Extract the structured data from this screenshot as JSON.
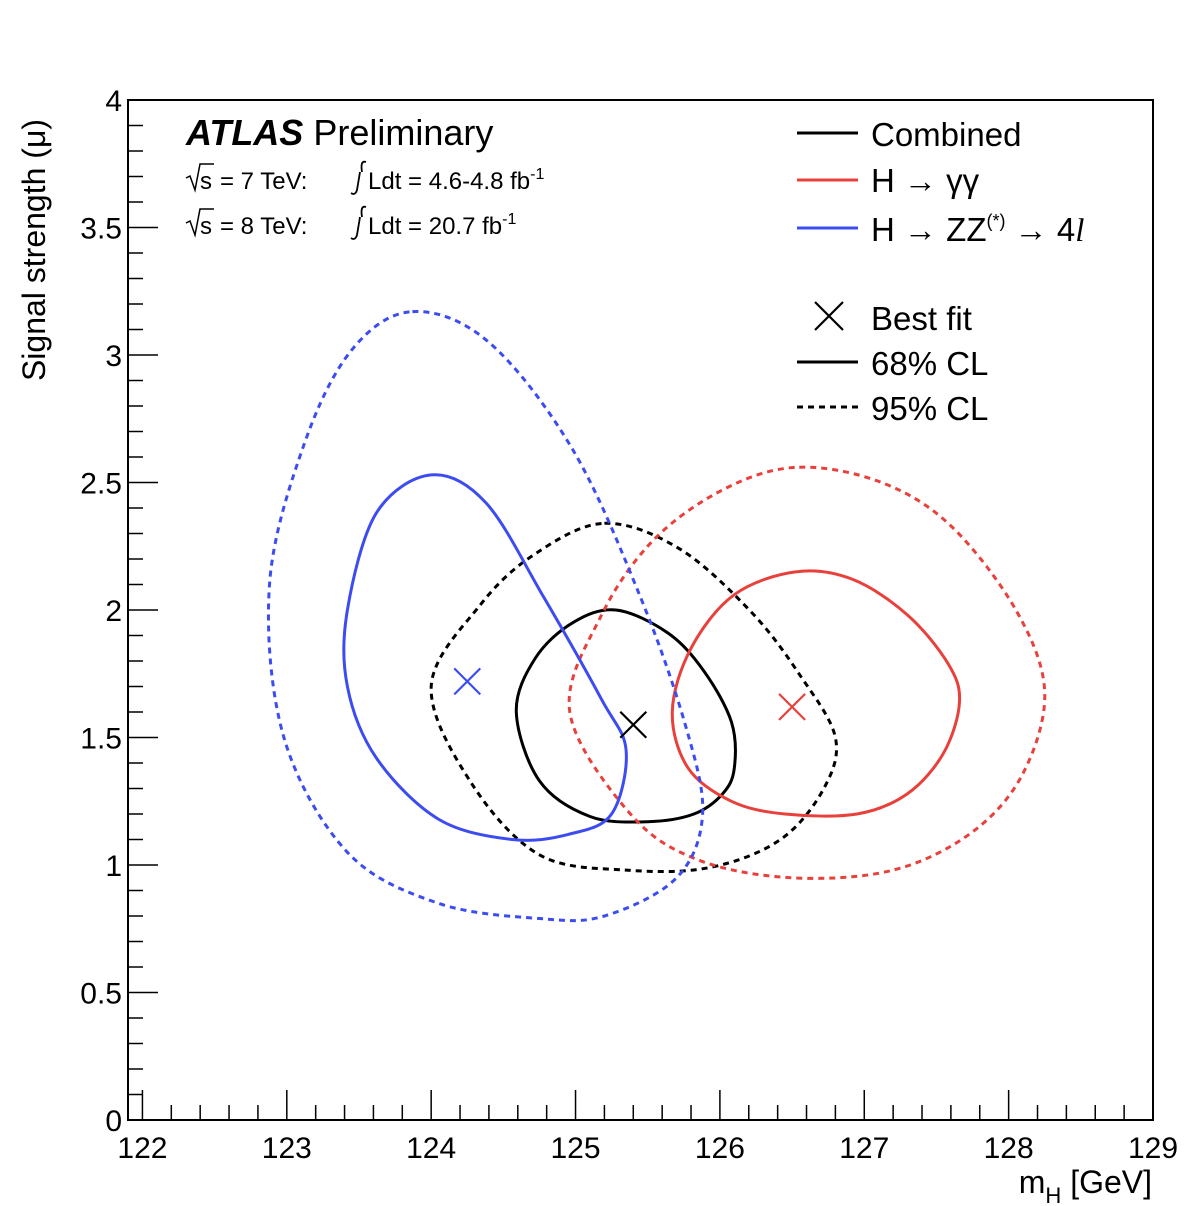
{
  "experiment": {
    "brand": "ATLAS",
    "status": "Preliminary"
  },
  "lumi_lines": [
    {
      "sqrt_label": "s",
      "energy": "= 7 TeV:",
      "integral": "Ldt = 4.6-4.8 fb",
      "exponent": "-1"
    },
    {
      "sqrt_label": "s",
      "energy": "= 8 TeV:",
      "integral": "Ldt = 20.7 fb",
      "exponent": "-1"
    }
  ],
  "legend": {
    "combined": "Combined",
    "gammagamma": "H → γγ",
    "zz": {
      "main": "H → ZZ",
      "sup": "(*)",
      "tail": " → 4",
      "ital": "l"
    },
    "best_fit": "Best fit",
    "cl68": "68% CL",
    "cl95": "95% CL"
  },
  "colors": {
    "combined": "#000000",
    "gammagamma": "#e8413c",
    "zz": "#3d4cf0"
  },
  "chart_data": {
    "type": "scatter",
    "xlabel": {
      "main": "m",
      "sub": "H",
      "unit": " [GeV]"
    },
    "ylabel": "Signal strength (μ)",
    "xlim": [
      121.9,
      129
    ],
    "ylim": [
      0,
      4
    ],
    "x_ticks": [
      122,
      123,
      124,
      125,
      126,
      127,
      128,
      129
    ],
    "y_ticks": [
      0,
      0.5,
      1,
      1.5,
      2,
      2.5,
      3,
      3.5,
      4
    ],
    "y_tick_labels": [
      "0",
      "0.5",
      "1",
      "1.5",
      "2",
      "2.5",
      "3",
      "3.5",
      "4"
    ],
    "grid": false,
    "legend_position": "top-right",
    "series": [
      {
        "name": "Combined",
        "color_key": "combined",
        "best_fit": [
          125.4,
          1.55
        ],
        "cl68": [
          [
            125.28,
            2.0
          ],
          [
            125.64,
            1.91
          ],
          [
            125.89,
            1.76
          ],
          [
            126.08,
            1.56
          ],
          [
            126.1,
            1.38
          ],
          [
            126.02,
            1.28
          ],
          [
            125.82,
            1.2
          ],
          [
            125.5,
            1.17
          ],
          [
            125.1,
            1.19
          ],
          [
            124.75,
            1.33
          ],
          [
            124.59,
            1.6
          ],
          [
            124.72,
            1.81
          ],
          [
            124.98,
            1.95
          ]
        ],
        "cl95": [
          [
            125.2,
            2.34
          ],
          [
            125.72,
            2.24
          ],
          [
            126.22,
            1.99
          ],
          [
            126.56,
            1.74
          ],
          [
            126.8,
            1.5
          ],
          [
            126.72,
            1.3
          ],
          [
            126.42,
            1.1
          ],
          [
            125.93,
            0.99
          ],
          [
            125.35,
            0.98
          ],
          [
            124.75,
            1.04
          ],
          [
            124.28,
            1.32
          ],
          [
            124.0,
            1.7
          ],
          [
            124.34,
            2.02
          ],
          [
            124.72,
            2.22
          ]
        ]
      },
      {
        "name": "H → γγ",
        "color_key": "gammagamma",
        "best_fit": [
          126.5,
          1.62
        ],
        "cl68": [
          [
            126.53,
            2.15
          ],
          [
            126.92,
            2.12
          ],
          [
            127.3,
            1.98
          ],
          [
            127.58,
            1.79
          ],
          [
            127.66,
            1.64
          ],
          [
            127.55,
            1.44
          ],
          [
            127.3,
            1.28
          ],
          [
            126.95,
            1.2
          ],
          [
            126.45,
            1.2
          ],
          [
            126.08,
            1.25
          ],
          [
            125.78,
            1.38
          ],
          [
            125.67,
            1.6
          ],
          [
            125.8,
            1.85
          ],
          [
            126.1,
            2.06
          ]
        ],
        "cl95": [
          [
            126.55,
            2.56
          ],
          [
            127.12,
            2.5
          ],
          [
            127.6,
            2.33
          ],
          [
            128.05,
            2.0
          ],
          [
            128.25,
            1.68
          ],
          [
            128.1,
            1.36
          ],
          [
            127.75,
            1.13
          ],
          [
            127.2,
            0.98
          ],
          [
            126.5,
            0.95
          ],
          [
            125.85,
            1.02
          ],
          [
            125.38,
            1.2
          ],
          [
            124.96,
            1.6
          ],
          [
            125.18,
            1.98
          ],
          [
            125.55,
            2.28
          ],
          [
            126.05,
            2.48
          ]
        ]
      },
      {
        "name": "H → ZZ(*) → 4l",
        "color_key": "zz",
        "best_fit": [
          124.25,
          1.72
        ],
        "cl68": [
          [
            124.0,
            2.53
          ],
          [
            124.38,
            2.42
          ],
          [
            124.78,
            2.05
          ],
          [
            125.18,
            1.65
          ],
          [
            125.35,
            1.45
          ],
          [
            125.25,
            1.2
          ],
          [
            124.95,
            1.12
          ],
          [
            124.56,
            1.1
          ],
          [
            124.05,
            1.18
          ],
          [
            123.62,
            1.42
          ],
          [
            123.42,
            1.7
          ],
          [
            123.42,
            2.0
          ],
          [
            123.62,
            2.38
          ]
        ],
        "cl95": [
          [
            123.87,
            3.17
          ],
          [
            124.4,
            3.05
          ],
          [
            124.98,
            2.63
          ],
          [
            125.45,
            2.05
          ],
          [
            125.76,
            1.55
          ],
          [
            125.88,
            1.2
          ],
          [
            125.7,
            0.95
          ],
          [
            125.2,
            0.8
          ],
          [
            124.75,
            0.79
          ],
          [
            124.05,
            0.85
          ],
          [
            123.42,
            1.05
          ],
          [
            122.98,
            1.5
          ],
          [
            122.88,
            2.1
          ],
          [
            123.12,
            2.65
          ],
          [
            123.45,
            3.02
          ]
        ]
      }
    ]
  }
}
